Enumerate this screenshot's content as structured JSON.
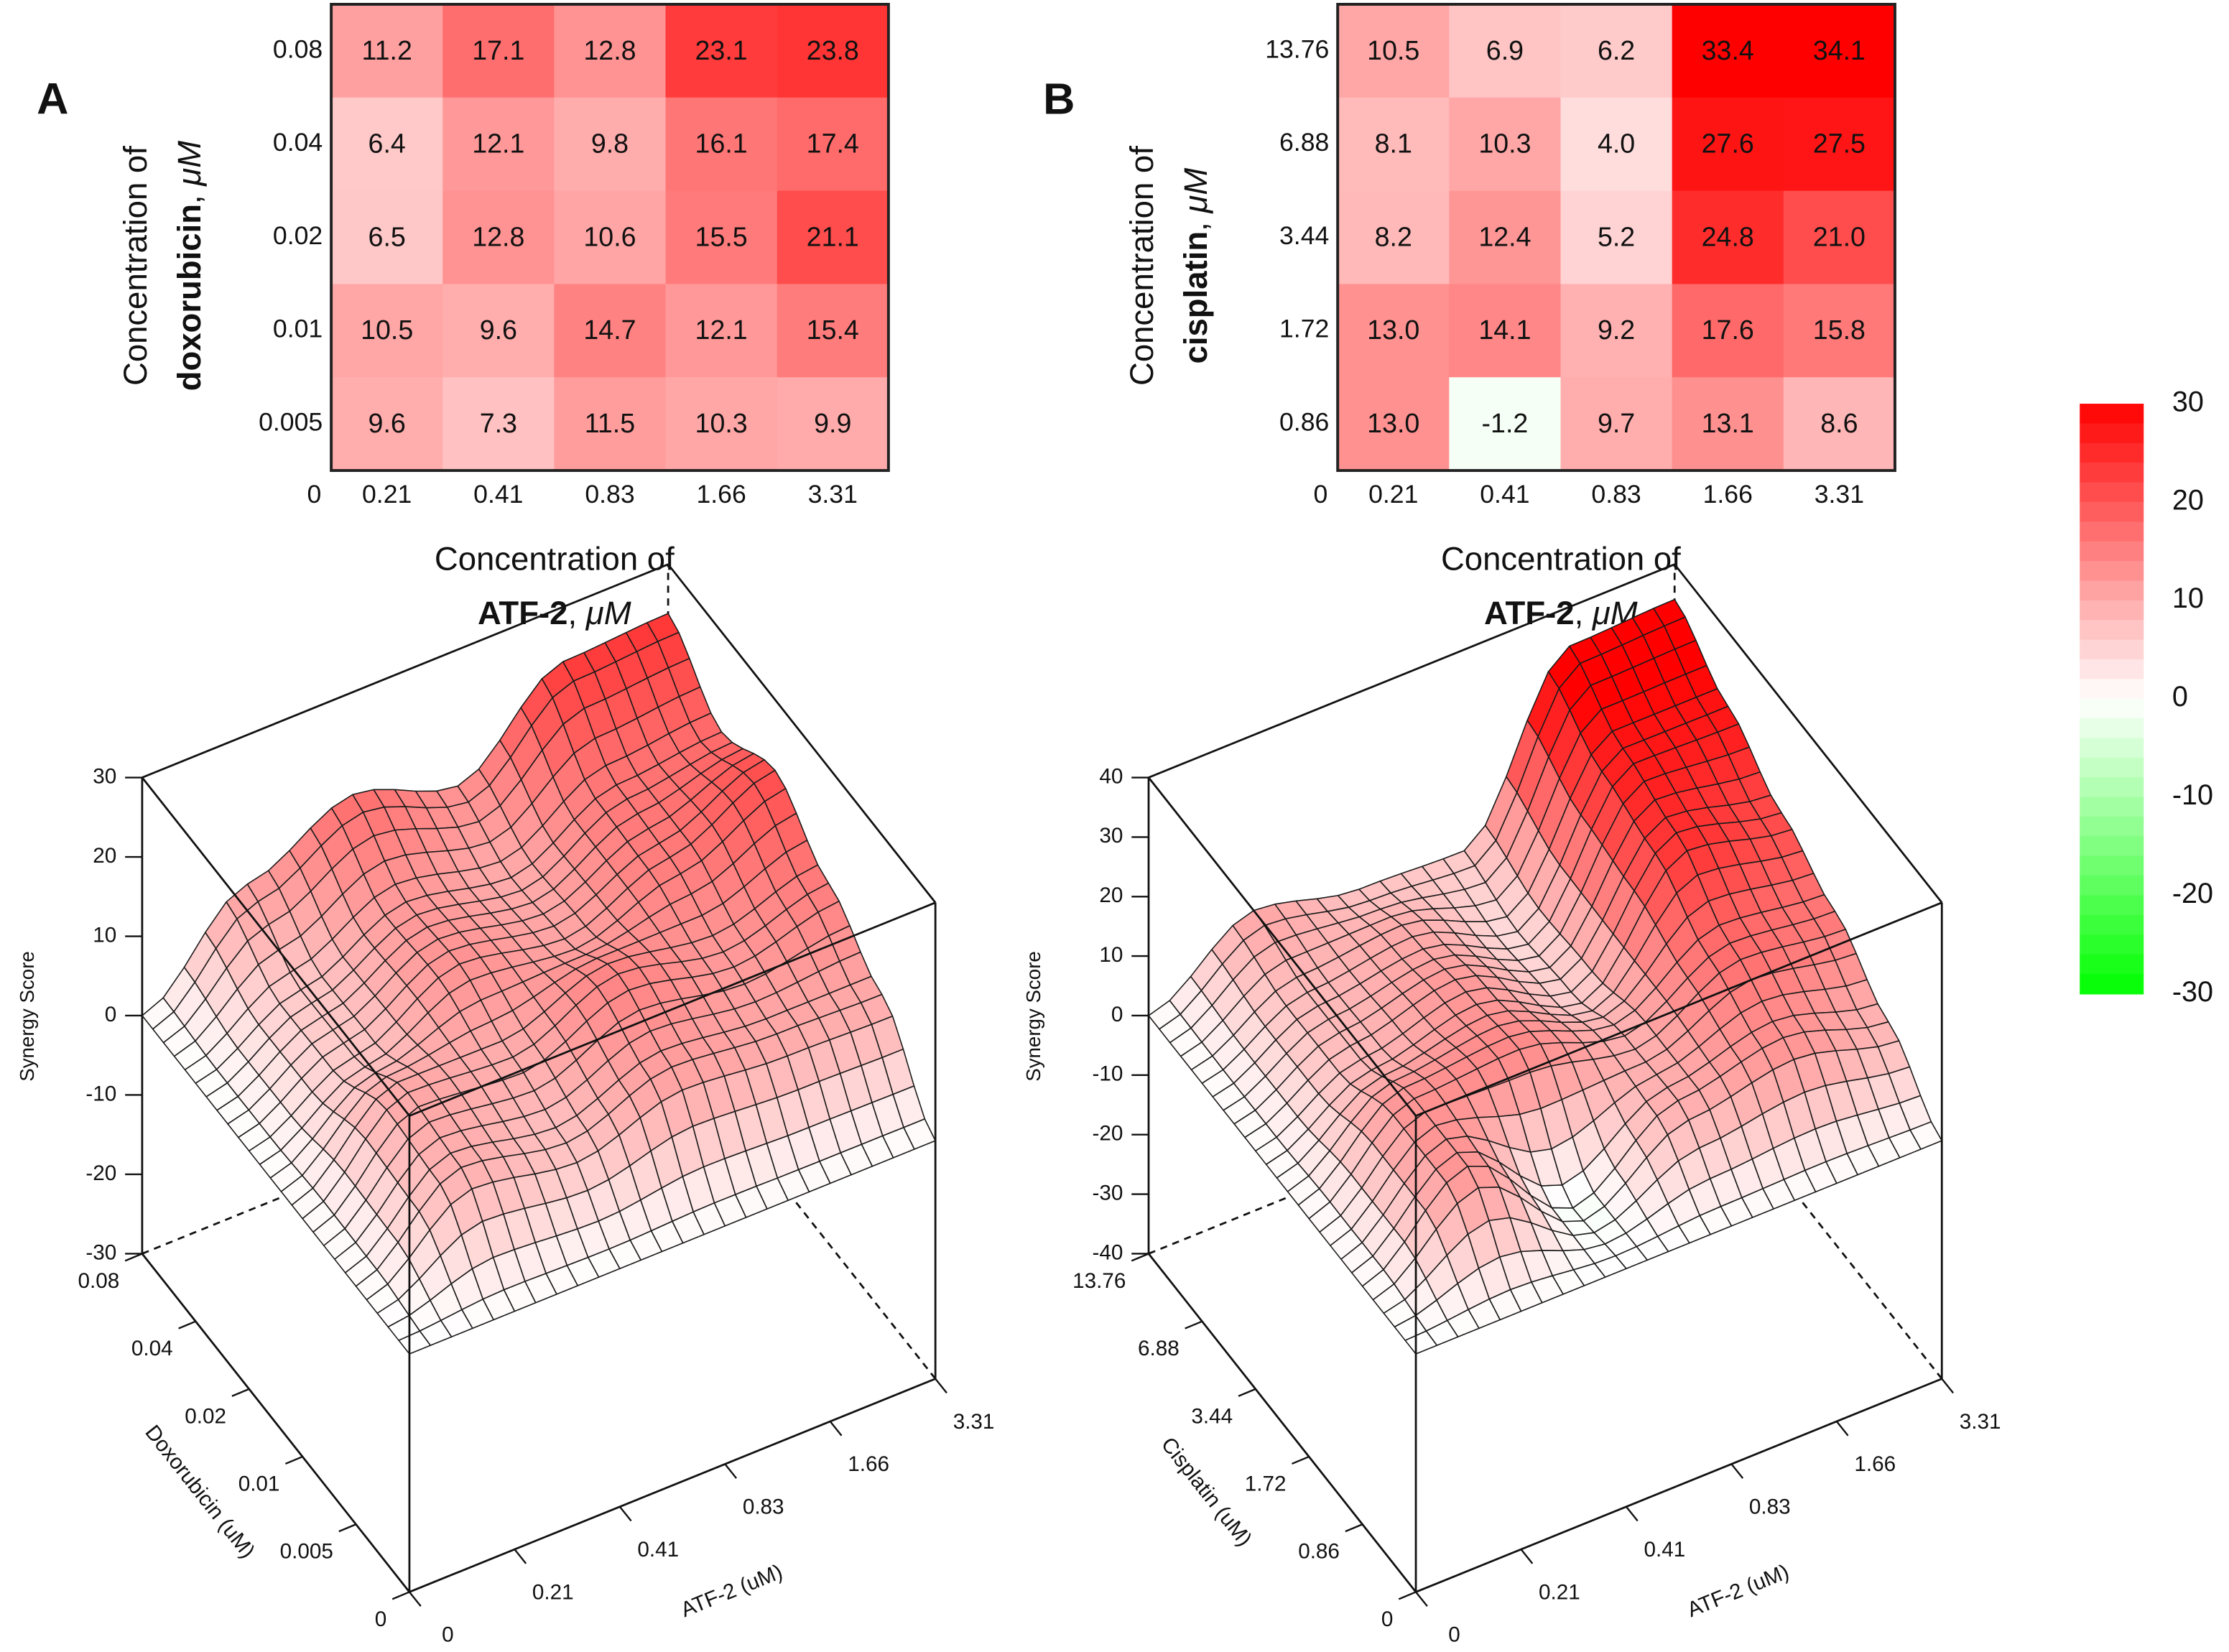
{
  "colorbar": {
    "lim": [
      -30,
      30
    ],
    "ticks": [
      30,
      20,
      10,
      0,
      -10,
      -20,
      -30
    ],
    "colors": {
      "high": "#ff0000",
      "mid": "#ffffff",
      "low": "#00ff00"
    }
  },
  "chart_data": [
    {
      "type": "heatmap",
      "panel": "A",
      "x_categories": [
        "0.21",
        "0.41",
        "0.83",
        "1.66",
        "3.31"
      ],
      "y_categories": [
        "0.08",
        "0.04",
        "0.02",
        "0.01",
        "0.005"
      ],
      "origin_label": 0,
      "values": [
        [
          11.2,
          17.1,
          12.8,
          23.1,
          23.8
        ],
        [
          6.4,
          12.1,
          9.8,
          16.1,
          17.4
        ],
        [
          6.5,
          12.8,
          10.6,
          15.5,
          21.1
        ],
        [
          10.5,
          9.6,
          14.7,
          12.1,
          15.4
        ],
        [
          9.6,
          7.3,
          11.5,
          10.3,
          9.9
        ]
      ],
      "value_labels": [
        [
          "11.2",
          "17.1",
          "12.8",
          "23.1",
          "23.8"
        ],
        [
          "6.4",
          "12.1",
          "9.8",
          "16.1",
          "17.4"
        ],
        [
          "6.5",
          "12.8",
          "10.6",
          "15.5",
          "21.1"
        ],
        [
          "10.5",
          "9.6",
          "14.7",
          "12.1",
          "15.4"
        ],
        [
          "9.6",
          "7.3",
          "11.5",
          "10.3",
          "9.9"
        ]
      ],
      "xlabel": {
        "line1": "Concentration of",
        "bold": "ATF-2",
        "sep": ", ",
        "unit": "μM"
      },
      "ylabel": {
        "line1": "Concentration of",
        "bold": "doxorubicin",
        "sep": ", ",
        "unit": "μM"
      },
      "surface": {
        "type": "surface",
        "zlabel": "Synergy Score",
        "xlabel": "ATF-2 (uM)",
        "ylabel": "Doxorubicin (uM)",
        "x_categories": [
          "0",
          "0.21",
          "0.41",
          "0.83",
          "1.66",
          "3.31"
        ],
        "y_categories": [
          "0",
          "0.005",
          "0.01",
          "0.02",
          "0.04",
          "0.08"
        ],
        "zlim": [
          -30,
          30
        ],
        "zticks": [
          30,
          20,
          10,
          0,
          -10,
          -20,
          -30
        ]
      }
    },
    {
      "type": "heatmap",
      "panel": "B",
      "x_categories": [
        "0.21",
        "0.41",
        "0.83",
        "1.66",
        "3.31"
      ],
      "y_categories": [
        "13.76",
        "6.88",
        "3.44",
        "1.72",
        "0.86"
      ],
      "origin_label": 0,
      "values": [
        [
          10.5,
          6.9,
          6.2,
          33.4,
          34.1
        ],
        [
          8.1,
          10.3,
          4.0,
          27.6,
          27.5
        ],
        [
          8.2,
          12.4,
          5.2,
          24.8,
          21.0
        ],
        [
          13.0,
          14.1,
          9.2,
          17.6,
          15.8
        ],
        [
          13.0,
          -1.2,
          9.7,
          13.1,
          8.6
        ]
      ],
      "value_labels": [
        [
          "10.5",
          "6.9",
          "6.2",
          "33.4",
          "34.1"
        ],
        [
          "8.1",
          "10.3",
          "4.0",
          "27.6",
          "27.5"
        ],
        [
          "8.2",
          "12.4",
          "5.2",
          "24.8",
          "21.0"
        ],
        [
          "13.0",
          "14.1",
          "9.2",
          "17.6",
          "15.8"
        ],
        [
          "13.0",
          "-1.2",
          "9.7",
          "13.1",
          "8.6"
        ]
      ],
      "xlabel": {
        "line1": "Concentration of",
        "bold": "ATF-2",
        "sep": ", ",
        "unit": "μM"
      },
      "ylabel": {
        "line1": "Concentration of",
        "bold": "cisplatin",
        "sep": ", ",
        "unit": "μM"
      },
      "surface": {
        "type": "surface",
        "zlabel": "Synergy Score",
        "xlabel": "ATF-2 (uM)",
        "ylabel": "Cisplatin (uM)",
        "x_categories": [
          "0",
          "0.21",
          "0.41",
          "0.83",
          "1.66",
          "3.31"
        ],
        "y_categories": [
          "0",
          "0.86",
          "1.72",
          "3.44",
          "6.88",
          "13.76"
        ],
        "zlim": [
          -40,
          40
        ],
        "zticks": [
          40,
          30,
          20,
          10,
          0,
          -10,
          -20,
          -30,
          -40
        ]
      }
    }
  ]
}
